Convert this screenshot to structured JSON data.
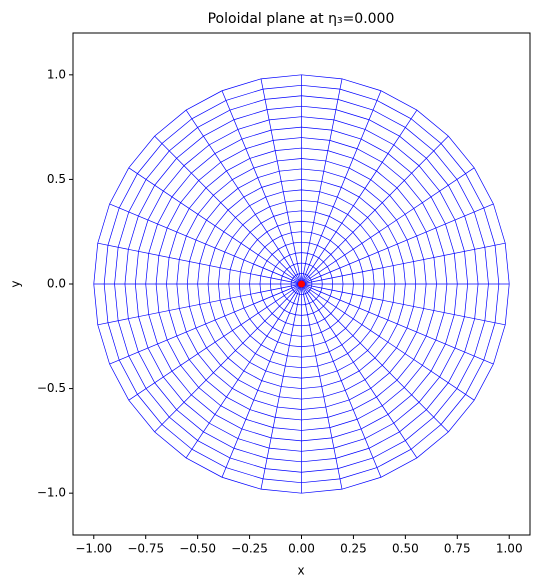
{
  "chart_data": {
    "type": "mesh",
    "title": "Poloidal plane at η₃=0.000",
    "x_label": "x",
    "y_label": "y",
    "radii": [
      0.05,
      0.1,
      0.15,
      0.2,
      0.25,
      0.3,
      0.35,
      0.4,
      0.45,
      0.5,
      0.55,
      0.6,
      0.65,
      0.7,
      0.75,
      0.8,
      0.85,
      0.9,
      0.95,
      1.0
    ],
    "angles": [
      0,
      11.25,
      22.5,
      33.75,
      45,
      56.25,
      67.5,
      78.75,
      90,
      101.25,
      112.5,
      123.75,
      135,
      146.25,
      157.5,
      168.75,
      180,
      191.25,
      202.5,
      213.75,
      225,
      236.25,
      247.5,
      258.75,
      270,
      281.25,
      292.5,
      303.75,
      315,
      326.25,
      337.5,
      348.75
    ],
    "color": "blue",
    "point": {
      "x": 0,
      "y": 0,
      "color": "red"
    },
    "xlim": [
      -1.1,
      1.1
    ],
    "ylim": [
      -1.2,
      1.2
    ],
    "xticks": [
      {
        "value": -1,
        "label": "−1.00"
      },
      {
        "value": -0.75,
        "label": "−0.75"
      },
      {
        "value": -0.5,
        "label": "−0.50"
      },
      {
        "value": -0.25,
        "label": "−0.25"
      },
      {
        "value": 0,
        "label": "0.00"
      },
      {
        "value": 0.25,
        "label": "0.25"
      },
      {
        "value": 0.5,
        "label": "0.50"
      },
      {
        "value": 0.75,
        "label": "0.75"
      },
      {
        "value": 1,
        "label": "1.00"
      }
    ],
    "yticks": [
      {
        "value": -1,
        "label": "−1.0"
      },
      {
        "value": -0.5,
        "label": "−0.5"
      },
      {
        "value": 0,
        "label": "0.0"
      },
      {
        "value": 0.5,
        "label": "0.5"
      },
      {
        "value": 1,
        "label": "1.0"
      }
    ]
  }
}
